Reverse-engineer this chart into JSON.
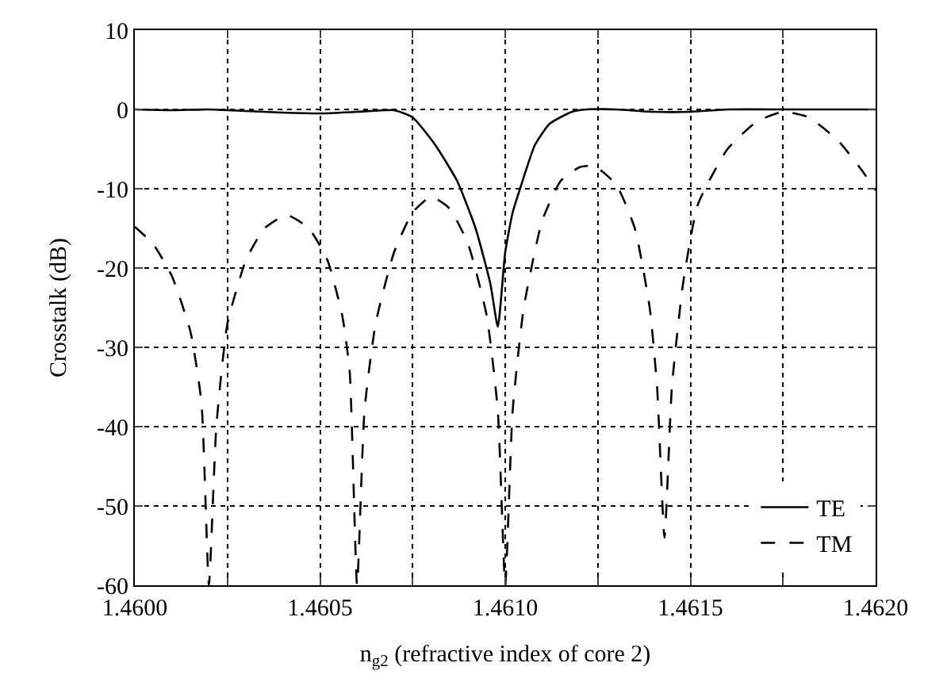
{
  "chart_data": {
    "type": "line",
    "xlabel": "n$_{g2}$ (refractive index of core 2)",
    "ylabel": "Crosstalk (dB)",
    "xlim": [
      1.46,
      1.462
    ],
    "ylim": [
      -60,
      10
    ],
    "xticks": [
      {
        "value": 1.46,
        "label": "1.4600"
      },
      {
        "value": 1.46025,
        "label": null
      },
      {
        "value": 1.4605,
        "label": "1.4605"
      },
      {
        "value": 1.46075,
        "label": null
      },
      {
        "value": 1.461,
        "label": "1.4610"
      },
      {
        "value": 1.46125,
        "label": null
      },
      {
        "value": 1.4615,
        "label": "1.4615"
      },
      {
        "value": 1.46175,
        "label": null
      },
      {
        "value": 1.462,
        "label": "1.4620"
      }
    ],
    "yticks": [
      -60,
      -50,
      -40,
      -30,
      -20,
      -10,
      0,
      10
    ],
    "grid": true,
    "legend": "bottom right",
    "series": [
      {
        "name": "TE",
        "color": "#000000",
        "line_style": "solid",
        "x": [
          1.46,
          1.4601,
          1.4602,
          1.4603,
          1.4604,
          1.4605,
          1.4606,
          1.4607,
          1.46075,
          1.46081,
          1.46087,
          1.46092,
          1.46096,
          1.46098,
          1.461,
          1.46102,
          1.46104,
          1.46108,
          1.46112,
          1.46118,
          1.46122,
          1.4613,
          1.4614,
          1.4615,
          1.4616,
          1.4618,
          1.462
        ],
        "values": [
          0,
          -0.1,
          0,
          -0.2,
          -0.4,
          -0.5,
          -0.3,
          -0.1,
          -1,
          -4.4,
          -9,
          -15,
          -22,
          -27.4,
          -18,
          -13,
          -10,
          -4.5,
          -1.8,
          -0.3,
          0,
          0,
          -0.3,
          -0.3,
          0,
          0,
          0
        ]
      },
      {
        "name": "TM",
        "color": "#000000",
        "line_style": "dashed",
        "x": [
          1.46,
          1.46005,
          1.4601,
          1.46015,
          1.46018,
          1.4602,
          1.46022,
          1.46025,
          1.4603,
          1.46035,
          1.46041,
          1.46047,
          1.46052,
          1.46056,
          1.46058,
          1.4606,
          1.46062,
          1.46065,
          1.4607,
          1.46075,
          1.4608,
          1.46085,
          1.4609,
          1.46095,
          1.46098,
          1.461,
          1.46102,
          1.46105,
          1.4611,
          1.46115,
          1.4612,
          1.46124,
          1.4613,
          1.46135,
          1.46139,
          1.46141,
          1.46143,
          1.46145,
          1.46148,
          1.46152,
          1.4616,
          1.46168,
          1.46175,
          1.46182,
          1.4619,
          1.46196,
          1.462
        ],
        "values": [
          -14.8,
          -17,
          -21,
          -28,
          -37,
          -60,
          -40,
          -27,
          -19,
          -15,
          -13.3,
          -15,
          -19,
          -26,
          -33,
          -60,
          -38,
          -27,
          -18,
          -13,
          -11,
          -12.5,
          -17,
          -26,
          -38,
          -60,
          -38,
          -25,
          -14,
          -9,
          -7.3,
          -7.1,
          -9.5,
          -15,
          -25,
          -35,
          -54,
          -35,
          -22,
          -12,
          -5,
          -1.5,
          -0.3,
          -1,
          -4,
          -7.5,
          -10.2
        ]
      }
    ]
  }
}
